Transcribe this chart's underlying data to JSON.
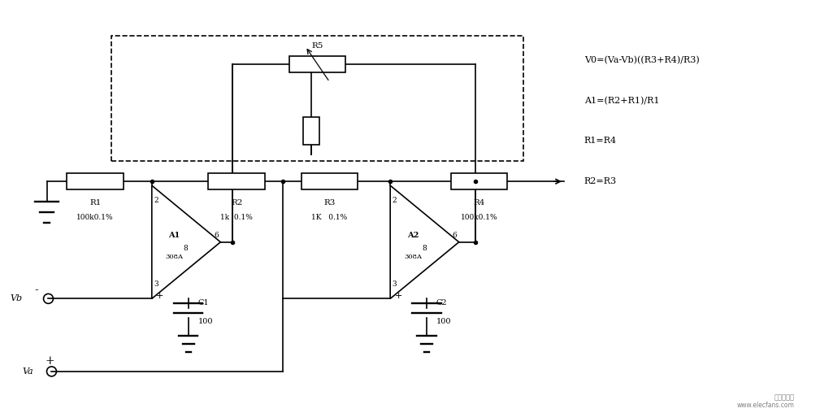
{
  "bg_color": "#ffffff",
  "line_color": "#000000",
  "title": "",
  "formulas": [
    "V0=(Va-Vb)((R3+R4)/R3)",
    "A1=(R2+R1)/R1",
    "R1=R4",
    "R2=R3"
  ],
  "figsize": [
    10.25,
    5.08
  ],
  "dpi": 100
}
